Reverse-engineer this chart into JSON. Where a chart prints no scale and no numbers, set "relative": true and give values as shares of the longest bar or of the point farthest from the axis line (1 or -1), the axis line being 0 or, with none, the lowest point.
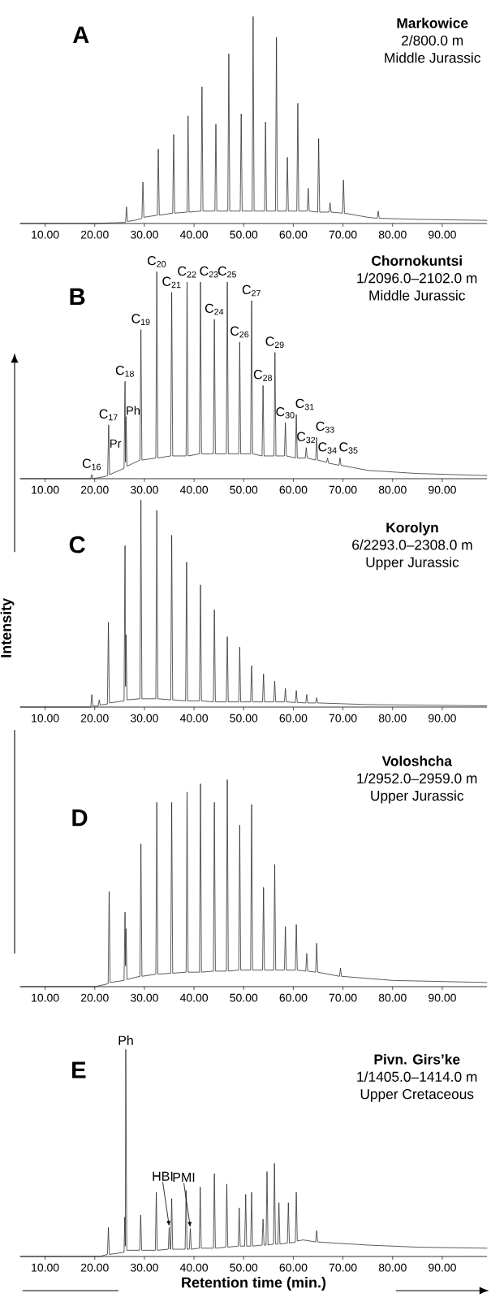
{
  "chart_data": [
    {
      "type": "line",
      "title": "Markowice",
      "subtitle": "2/800.0 m",
      "annotations": [
        "A",
        "Middle Jurassic"
      ],
      "relative": true,
      "color": "#231f20",
      "x": [
        5,
        20,
        26,
        26.2,
        26.4,
        26.6,
        28,
        29.5,
        29.7,
        29.9,
        32.6,
        32.8,
        33.0,
        35.7,
        35.9,
        36.1,
        38.6,
        38.8,
        39.0,
        41.4,
        41.6,
        41.8,
        44.2,
        44.4,
        44.6,
        46.8,
        47.0,
        47.2,
        49.3,
        49.5,
        49.7,
        51.7,
        51.9,
        52.1,
        54.2,
        54.4,
        54.6,
        56.4,
        56.6,
        56.8,
        58.6,
        58.8,
        59.0,
        60.7,
        60.9,
        61.1,
        62.8,
        63.0,
        63.2,
        64.9,
        65.1,
        65.3,
        67.2,
        67.4,
        67.6,
        69.9,
        70.1,
        70.3,
        75,
        76.9,
        77.1,
        77.3,
        85,
        99
      ],
      "values": [
        0,
        0,
        0.005,
        0.005,
        0.08,
        0.01,
        0.015,
        0.025,
        0.2,
        0.03,
        0.04,
        0.36,
        0.04,
        0.05,
        0.43,
        0.05,
        0.055,
        0.52,
        0.055,
        0.06,
        0.66,
        0.06,
        0.06,
        0.48,
        0.06,
        0.06,
        0.82,
        0.06,
        0.06,
        0.53,
        0.06,
        0.06,
        1.0,
        0.06,
        0.06,
        0.49,
        0.06,
        0.06,
        0.9,
        0.06,
        0.06,
        0.32,
        0.06,
        0.06,
        0.58,
        0.06,
        0.06,
        0.17,
        0.06,
        0.055,
        0.41,
        0.055,
        0.055,
        0.1,
        0.055,
        0.05,
        0.21,
        0.05,
        0.03,
        0.025,
        0.06,
        0.025,
        0.02,
        0.015
      ],
      "xlim": [
        5,
        99
      ],
      "xticks": [
        {
          "value": 10,
          "label": "10.00"
        },
        {
          "value": 20,
          "label": "20.00"
        },
        {
          "value": 30,
          "label": "30.00"
        },
        {
          "value": 40,
          "label": "40.00"
        },
        {
          "value": 50,
          "label": "50.00"
        },
        {
          "value": 60,
          "label": "60.00"
        },
        {
          "value": 70,
          "label": "70.00"
        },
        {
          "value": 80,
          "label": "80.00"
        },
        {
          "value": 90,
          "label": "90.00"
        }
      ]
    },
    {
      "type": "line",
      "title": "Chornokuntsi",
      "subtitle": "1/2096.0–2102.0 m",
      "relative": true,
      "color": "#231f20",
      "annotations": [
        "B",
        "Middle Jurassic",
        {
          "text": "C$_{16}$",
          "x": 19.4,
          "y": 0.02
        },
        {
          "text": "C$_{17}$",
          "x": 22.8,
          "y": 0.26
        },
        {
          "text": "Pr",
          "x": 22.8,
          "y": 0.17
        },
        {
          "text": "C$_{18}$",
          "x": 26.1,
          "y": 0.47
        },
        {
          "text": "Ph",
          "x": 26.1,
          "y": 0.33
        },
        {
          "text": "C$_{19}$",
          "x": 29.3,
          "y": 0.72
        },
        {
          "text": "C$_{20}$",
          "x": 32.5,
          "y": 1.0
        },
        {
          "text": "C$_{21}$",
          "x": 35.5,
          "y": 0.9
        },
        {
          "text": "C$_{22}$",
          "x": 38.6,
          "y": 0.95
        },
        {
          "text": "C$_{23}$",
          "x": 41.3,
          "y": 0.95
        },
        {
          "text": "C$_{24}$",
          "x": 44.1,
          "y": 0.77
        },
        {
          "text": "C$_{25}$",
          "x": 46.7,
          "y": 0.95
        },
        {
          "text": "C$_{26}$",
          "x": 49.2,
          "y": 0.66
        },
        {
          "text": "C$_{27}$",
          "x": 51.6,
          "y": 0.86
        },
        {
          "text": "C$_{28}$",
          "x": 53.9,
          "y": 0.45
        },
        {
          "text": "C$_{29}$",
          "x": 56.3,
          "y": 0.61
        },
        {
          "text": "C$_{30}$",
          "x": 58.4,
          "y": 0.27
        },
        {
          "text": "C$_{31}$",
          "x": 60.6,
          "y": 0.31
        },
        {
          "text": "C$_{32}$",
          "x": 62.6,
          "y": 0.15
        },
        {
          "text": "C$_{33}$",
          "x": 64.7,
          "y": 0.2
        },
        {
          "text": "C$_{34}$",
          "x": 66.9,
          "y": 0.1
        },
        {
          "text": "C$_{35}$",
          "x": 69.4,
          "y": 0.1
        }
      ],
      "x": [
        5,
        19.2,
        19.4,
        19.6,
        22,
        22.6,
        22.8,
        23.0,
        24,
        25.9,
        26.1,
        26.2,
        26.3,
        26.5,
        29.1,
        29.3,
        29.5,
        32.3,
        32.5,
        32.7,
        35.3,
        35.5,
        35.7,
        38.4,
        38.6,
        38.8,
        41.1,
        41.3,
        41.5,
        43.9,
        44.1,
        44.3,
        46.5,
        46.7,
        46.9,
        49.0,
        49.2,
        49.4,
        51.4,
        51.6,
        51.8,
        53.7,
        53.9,
        54.1,
        56.1,
        56.3,
        56.5,
        58.2,
        58.4,
        58.6,
        60.4,
        60.6,
        60.8,
        62.4,
        62.6,
        62.8,
        64.5,
        64.7,
        64.9,
        66.7,
        66.9,
        67.1,
        69.2,
        69.4,
        69.6,
        75,
        85,
        99
      ],
      "values": [
        0,
        0,
        0.02,
        0,
        0.01,
        0.015,
        0.26,
        0.02,
        0.03,
        0.05,
        0.47,
        0.08,
        0.3,
        0.06,
        0.09,
        0.72,
        0.09,
        0.1,
        1.0,
        0.1,
        0.11,
        0.9,
        0.11,
        0.11,
        0.95,
        0.11,
        0.12,
        0.95,
        0.12,
        0.12,
        0.77,
        0.12,
        0.12,
        0.95,
        0.12,
        0.12,
        0.66,
        0.12,
        0.12,
        0.86,
        0.12,
        0.11,
        0.45,
        0.11,
        0.11,
        0.61,
        0.11,
        0.11,
        0.27,
        0.11,
        0.1,
        0.31,
        0.1,
        0.1,
        0.15,
        0.1,
        0.09,
        0.2,
        0.09,
        0.08,
        0.1,
        0.075,
        0.065,
        0.1,
        0.065,
        0.04,
        0.025,
        0.015
      ],
      "xlim": [
        5,
        99
      ],
      "xticks": [
        {
          "value": 10,
          "label": "10.00"
        },
        {
          "value": 20,
          "label": "20.00"
        },
        {
          "value": 30,
          "label": "30.00"
        },
        {
          "value": 40,
          "label": "40.00"
        },
        {
          "value": 50,
          "label": "50.00"
        },
        {
          "value": 60,
          "label": "60.00"
        },
        {
          "value": 70,
          "label": "70.00"
        },
        {
          "value": 80,
          "label": "80.00"
        },
        {
          "value": 90,
          "label": "90.00"
        }
      ]
    },
    {
      "type": "line",
      "title": "Korolyn",
      "subtitle": "6/2293.0–2308.0 m",
      "annotations": [
        "C",
        "Upper Jurassic"
      ],
      "ylabel": "Intensity",
      "relative": true,
      "color": "#231f20",
      "x": [
        5,
        19.2,
        19.4,
        19.6,
        20.7,
        20.9,
        21.1,
        22.55,
        22.75,
        22.95,
        25.9,
        26.1,
        26.2,
        26.3,
        26.5,
        29.1,
        29.3,
        29.5,
        32.3,
        32.5,
        32.7,
        35.3,
        35.5,
        35.7,
        38.3,
        38.5,
        38.7,
        41.1,
        41.3,
        41.5,
        43.9,
        44.1,
        44.3,
        46.5,
        46.7,
        46.9,
        49.0,
        49.2,
        49.4,
        51.4,
        51.6,
        51.8,
        53.8,
        54.0,
        54.2,
        56.05,
        56.25,
        56.45,
        58.2,
        58.4,
        58.6,
        60.4,
        60.6,
        60.8,
        62.5,
        62.7,
        62.9,
        64.5,
        64.7,
        64.9,
        75,
        99
      ],
      "values": [
        0,
        0,
        0.06,
        0.005,
        0.005,
        0.035,
        0.01,
        0.015,
        0.41,
        0.02,
        0.03,
        0.78,
        0.1,
        0.35,
        0.035,
        0.04,
        1.0,
        0.04,
        0.04,
        0.95,
        0.04,
        0.035,
        0.83,
        0.035,
        0.03,
        0.7,
        0.03,
        0.03,
        0.59,
        0.03,
        0.025,
        0.47,
        0.025,
        0.025,
        0.34,
        0.025,
        0.025,
        0.29,
        0.025,
        0.025,
        0.2,
        0.025,
        0.025,
        0.16,
        0.025,
        0.025,
        0.125,
        0.025,
        0.025,
        0.09,
        0.025,
        0.022,
        0.08,
        0.022,
        0.02,
        0.06,
        0.02,
        0.02,
        0.045,
        0.02,
        0.012,
        0.006
      ],
      "xlim": [
        5,
        99
      ],
      "xticks": [
        {
          "value": 10,
          "label": "10.00"
        },
        {
          "value": 20,
          "label": "20.00"
        },
        {
          "value": 30,
          "label": "30.00"
        },
        {
          "value": 40,
          "label": "40.00"
        },
        {
          "value": 50,
          "label": "50.00"
        },
        {
          "value": 60,
          "label": "60.00"
        },
        {
          "value": 70,
          "label": "70.00"
        },
        {
          "value": 80,
          "label": "80.00"
        },
        {
          "value": 90,
          "label": "90.00"
        }
      ]
    },
    {
      "type": "line",
      "title": "Voloshcha",
      "subtitle": "1/2952.0–2959.0 m",
      "annotations": [
        "D",
        "Upper Jurassic"
      ],
      "relative": true,
      "color": "#231f20",
      "x": [
        5,
        20,
        22,
        22.7,
        22.9,
        23.1,
        25.9,
        26.1,
        26.2,
        26.3,
        26.5,
        29.1,
        29.3,
        29.5,
        32.3,
        32.5,
        32.7,
        35.3,
        35.5,
        35.7,
        38.4,
        38.6,
        38.8,
        41.1,
        41.3,
        41.5,
        43.9,
        44.1,
        44.3,
        46.5,
        46.7,
        46.9,
        49.0,
        49.2,
        49.4,
        51.4,
        51.6,
        51.8,
        53.8,
        54.0,
        54.2,
        56.05,
        56.25,
        56.45,
        58.2,
        58.4,
        58.6,
        60.4,
        60.6,
        60.8,
        62.5,
        62.7,
        62.9,
        64.5,
        64.7,
        64.9,
        69.3,
        69.5,
        69.7,
        80,
        99
      ],
      "values": [
        0,
        0,
        0.01,
        0.015,
        0.46,
        0.02,
        0.03,
        0.36,
        0.1,
        0.28,
        0.035,
        0.05,
        0.69,
        0.05,
        0.06,
        0.89,
        0.06,
        0.065,
        0.89,
        0.065,
        0.07,
        0.94,
        0.07,
        0.07,
        0.98,
        0.07,
        0.075,
        0.89,
        0.075,
        0.075,
        1.0,
        0.075,
        0.08,
        0.78,
        0.08,
        0.08,
        0.88,
        0.08,
        0.08,
        0.48,
        0.08,
        0.08,
        0.59,
        0.08,
        0.08,
        0.29,
        0.08,
        0.08,
        0.3,
        0.08,
        0.075,
        0.16,
        0.075,
        0.07,
        0.21,
        0.07,
        0.05,
        0.09,
        0.05,
        0.03,
        0.02
      ],
      "xlim": [
        5,
        99
      ],
      "xticks": [
        {
          "value": 10,
          "label": "10.00"
        },
        {
          "value": 20,
          "label": "20.00"
        },
        {
          "value": 30,
          "label": "30.00"
        },
        {
          "value": 40,
          "label": "40.00"
        },
        {
          "value": 50,
          "label": "50.00"
        },
        {
          "value": 60,
          "label": "60.00"
        },
        {
          "value": 70,
          "label": "70.00"
        },
        {
          "value": 80,
          "label": "80.00"
        },
        {
          "value": 90,
          "label": "90.00"
        }
      ]
    },
    {
      "type": "line",
      "title": "Pivn. Girs’ke",
      "subtitle": "1/1405.0–1414.0 m",
      "xlabel": "Retention time (min.)",
      "relative": true,
      "color": "#231f20",
      "annotations": [
        "E",
        "Upper Cretaceous",
        {
          "text": "Ph",
          "x": 26.25,
          "y": 1.0
        },
        {
          "text": "HBI",
          "x": 35.0,
          "y": 0.14
        },
        {
          "text": "PMI",
          "x": 39.25,
          "y": 0.135
        }
      ],
      "x": [
        5,
        21,
        22.55,
        22.75,
        22.95,
        25.9,
        26.05,
        26.15,
        26.25,
        26.45,
        29.05,
        29.25,
        29.45,
        32.2,
        32.4,
        32.6,
        34.8,
        35.0,
        35.2,
        35.3,
        35.5,
        35.7,
        38.2,
        38.4,
        38.6,
        39.05,
        39.25,
        39.45,
        41.05,
        41.25,
        41.45,
        43.9,
        44.1,
        44.3,
        46.4,
        46.6,
        46.8,
        48.9,
        49.1,
        49.3,
        50.2,
        50.4,
        50.6,
        51.4,
        51.6,
        51.8,
        53.7,
        53.9,
        54.1,
        54.5,
        54.7,
        54.9,
        56.0,
        56.2,
        56.4,
        56.9,
        57.1,
        57.3,
        58.8,
        59.0,
        59.2,
        60.4,
        60.6,
        60.8,
        62,
        64.5,
        64.7,
        64.9,
        75,
        85,
        99
      ],
      "values": [
        0,
        0,
        0.01,
        0.14,
        0.01,
        0.02,
        0.19,
        0.05,
        1.0,
        0.03,
        0.03,
        0.2,
        0.03,
        0.03,
        0.31,
        0.03,
        0.035,
        0.14,
        0.035,
        0.035,
        0.28,
        0.035,
        0.035,
        0.32,
        0.035,
        0.035,
        0.135,
        0.035,
        0.04,
        0.335,
        0.04,
        0.04,
        0.4,
        0.04,
        0.045,
        0.35,
        0.045,
        0.05,
        0.235,
        0.05,
        0.05,
        0.3,
        0.05,
        0.05,
        0.31,
        0.05,
        0.055,
        0.18,
        0.055,
        0.055,
        0.41,
        0.055,
        0.06,
        0.45,
        0.06,
        0.06,
        0.26,
        0.06,
        0.065,
        0.26,
        0.065,
        0.07,
        0.31,
        0.075,
        0.08,
        0.07,
        0.125,
        0.07,
        0.055,
        0.045,
        0.04
      ],
      "xlim": [
        5,
        99
      ],
      "xticks": [
        {
          "value": 10,
          "label": "10.00"
        },
        {
          "value": 20,
          "label": "20.00"
        },
        {
          "value": 30,
          "label": "30.00"
        },
        {
          "value": 40,
          "label": "40.00"
        },
        {
          "value": 50,
          "label": "50.00"
        },
        {
          "value": 60,
          "label": "60.00"
        },
        {
          "value": 70,
          "label": "70.00"
        },
        {
          "value": 80,
          "label": "80.00"
        },
        {
          "value": 90,
          "label": "90.00"
        }
      ]
    }
  ]
}
